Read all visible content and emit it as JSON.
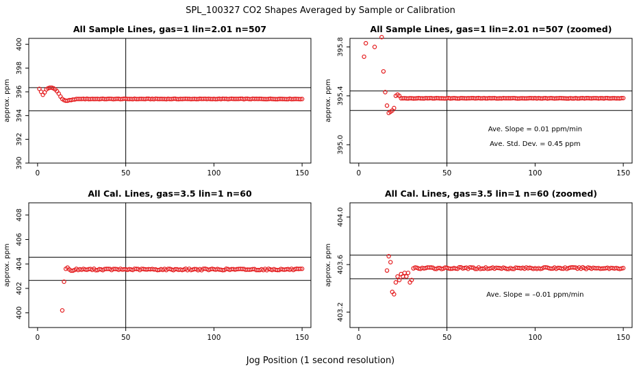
{
  "figure": {
    "title": "SPL_100327  CO2 Shapes Averaged by Sample or Calibration",
    "xlabel": "Jog Position (1 second resolution)"
  },
  "chart_data": [
    {
      "type": "scatter",
      "title": "All Sample Lines, gas=1 lin=2.01 n=507",
      "ylabel": "approx. ppm",
      "xlim": [
        -5,
        155
      ],
      "ylim": [
        390,
        400.5
      ],
      "xticks": [
        0,
        50,
        100,
        150
      ],
      "yticks": [
        390,
        392,
        394,
        396,
        398,
        400
      ],
      "xtick_labels": [
        "0",
        "50",
        "100",
        "150"
      ],
      "ytick_labels": [
        "390",
        "392",
        "394",
        "396",
        "398",
        "400"
      ],
      "hlines": [
        394.4,
        396.35
      ],
      "vline": 50,
      "marker_color": "#e41a1c",
      "x": [
        1,
        2,
        3,
        4,
        5,
        6,
        7,
        8,
        9,
        10,
        11,
        12,
        13,
        14,
        15,
        16,
        17,
        18,
        19,
        20,
        21,
        22,
        23,
        24,
        25
      ],
      "y": [
        396.25,
        396.0,
        395.75,
        395.95,
        396.2,
        396.3,
        396.35,
        396.35,
        396.3,
        396.2,
        396.05,
        395.85,
        395.6,
        395.4,
        395.3,
        395.25,
        395.25,
        395.3,
        395.3,
        395.35,
        395.35,
        395.4,
        395.4,
        395.4,
        395.4
      ],
      "steady": {
        "from": 26,
        "to": 150,
        "value": 395.4
      },
      "annotations": []
    },
    {
      "type": "scatter",
      "title": "All Sample Lines, gas=1 lin=2.01 n=507 (zoomed)",
      "ylabel": "approx. ppm",
      "xlim": [
        -5,
        155
      ],
      "ylim": [
        394.85,
        395.87
      ],
      "xticks": [
        0,
        50,
        100,
        150
      ],
      "yticks": [
        395.0,
        395.4,
        395.8
      ],
      "xtick_labels": [
        "0",
        "50",
        "100",
        "150"
      ],
      "ytick_labels": [
        "395.0",
        "395.4",
        "395.8"
      ],
      "hlines": [
        395.44,
        395.28
      ],
      "vline": 50,
      "marker_color": "#e41a1c",
      "x": [
        3,
        4,
        9,
        13,
        14,
        15,
        16,
        17,
        18,
        19,
        20,
        21,
        22,
        23,
        24,
        25
      ],
      "y": [
        395.72,
        395.83,
        395.8,
        395.88,
        395.6,
        395.43,
        395.32,
        395.26,
        395.27,
        395.28,
        395.3,
        395.4,
        395.41,
        395.4,
        395.38,
        395.38
      ],
      "steady": {
        "from": 26,
        "to": 150,
        "value": 395.38
      },
      "annotations": [
        {
          "text": "Ave. Slope =  0.01  ppm/min",
          "x": 100,
          "y": 395.11
        },
        {
          "text": "Ave. Std. Dev. =  0.45  ppm",
          "x": 100,
          "y": 394.99
        }
      ]
    },
    {
      "type": "scatter",
      "title": "All Cal. Lines, gas=3.5 lin=1 n=60",
      "ylabel": "approx. ppm",
      "xlim": [
        -5,
        155
      ],
      "ylim": [
        398.8,
        409.0
      ],
      "xticks": [
        0,
        50,
        100,
        150
      ],
      "yticks": [
        400,
        402,
        404,
        406,
        408
      ],
      "xtick_labels": [
        "0",
        "50",
        "100",
        "150"
      ],
      "ytick_labels": [
        "400",
        "402",
        "404",
        "406",
        "408"
      ],
      "hlines": [
        404.55,
        402.65
      ],
      "vline": 50,
      "marker_color": "#e41a1c",
      "x": [
        14,
        15,
        16,
        17,
        18,
        19,
        20
      ],
      "y": [
        400.2,
        402.55,
        403.6,
        403.7,
        403.55,
        403.45,
        403.45
      ],
      "steady": {
        "from": 21,
        "to": 150,
        "value": 403.55
      },
      "annotations": []
    },
    {
      "type": "scatter",
      "title": "All Cal. Lines, gas=3.5 lin=1 n=60 (zoomed)",
      "ylabel": "approx. ppm",
      "xlim": [
        -5,
        155
      ],
      "ylim": [
        403.07,
        404.12
      ],
      "xticks": [
        0,
        50,
        100,
        150
      ],
      "yticks": [
        403.2,
        403.6,
        404.0
      ],
      "xtick_labels": [
        "0",
        "50",
        "100",
        "150"
      ],
      "ytick_labels": [
        "403.2",
        "403.6",
        "404.0"
      ],
      "hlines": [
        403.68,
        403.48
      ],
      "vline": 50,
      "marker_color": "#e41a1c",
      "x": [
        16,
        17,
        18,
        19,
        20,
        21,
        22,
        23,
        24,
        25,
        26,
        27,
        28,
        29,
        30
      ],
      "y": [
        403.55,
        403.67,
        403.62,
        403.37,
        403.35,
        403.45,
        403.5,
        403.47,
        403.52,
        403.5,
        403.53,
        403.5,
        403.53,
        403.45,
        403.47
      ],
      "steady": {
        "from": 31,
        "to": 150,
        "value": 403.57
      },
      "annotations": [
        {
          "text": "Ave. Slope =  –0.01  ppm/min",
          "x": 100,
          "y": 403.33
        }
      ]
    }
  ]
}
